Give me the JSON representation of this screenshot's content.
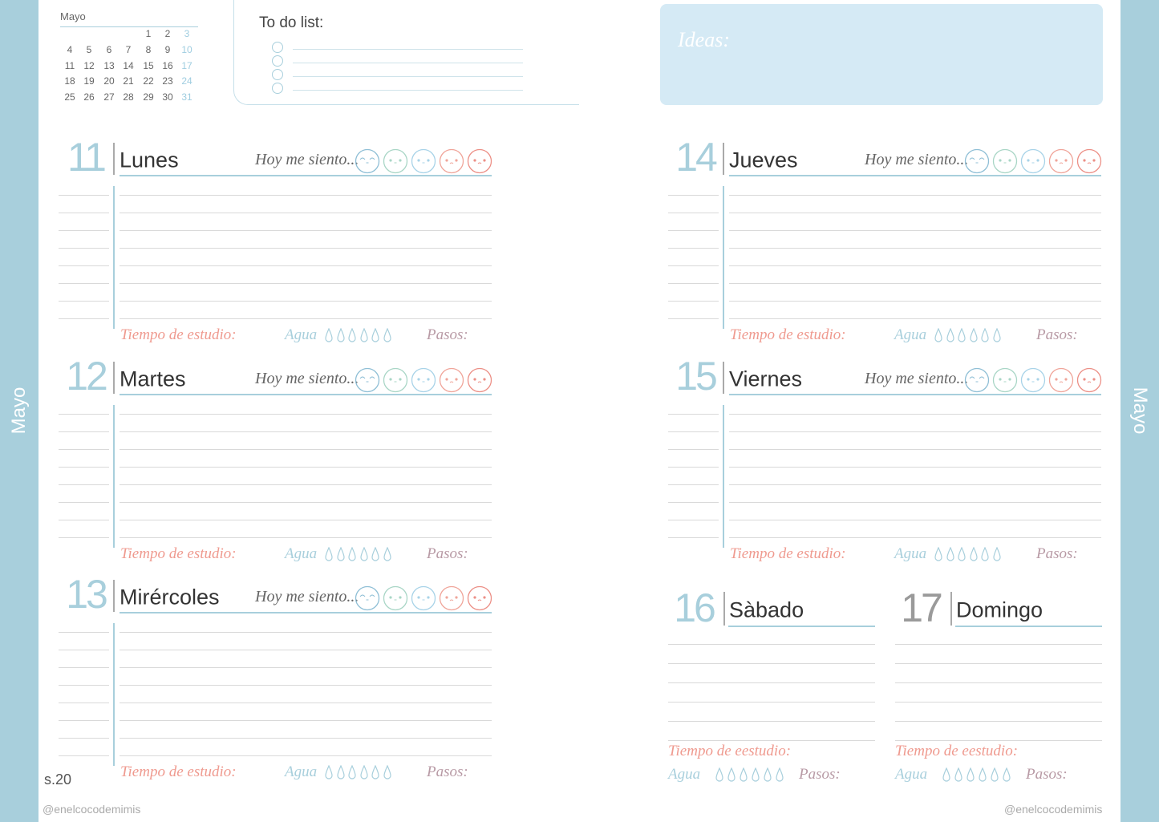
{
  "sidebar": {
    "left_label": "Mayo",
    "right_label": "Mayo"
  },
  "calendar": {
    "month": "Mayo",
    "rows": [
      [
        "",
        "",
        "",
        "",
        "1",
        "2",
        "3"
      ],
      [
        "4",
        "5",
        "6",
        "7",
        "8",
        "9",
        "10"
      ],
      [
        "11",
        "12",
        "13",
        "14",
        "15",
        "16",
        "17"
      ],
      [
        "18",
        "19",
        "20",
        "21",
        "22",
        "23",
        "24"
      ],
      [
        "25",
        "26",
        "27",
        "28",
        "29",
        "30",
        "31"
      ]
    ]
  },
  "todo": {
    "title": "To do list:",
    "items": 4
  },
  "ideas": {
    "title": "Ideas:"
  },
  "labels": {
    "mood": "Hoy me siento...",
    "study": "Tiempo de estudio:",
    "study_weekend": "Tiempo de eestudio:",
    "water": "Agua",
    "steps": "Pasos:"
  },
  "days": [
    {
      "num": "11",
      "name": "Lunes"
    },
    {
      "num": "12",
      "name": "Martes"
    },
    {
      "num": "13",
      "name": "Mirércoles"
    },
    {
      "num": "14",
      "name": "Jueves"
    },
    {
      "num": "15",
      "name": "Viernes"
    },
    {
      "num": "16",
      "name": "Sàbado"
    },
    {
      "num": "17",
      "name": "Domingo"
    }
  ],
  "moods": [
    "happy-face-icon",
    "calm-face-icon",
    "neutral-face-icon",
    "sad-face-icon",
    "angry-face-icon"
  ],
  "water_glasses": 6,
  "week": "s.20",
  "footer": {
    "left": "@enelcocodemimis",
    "right": "@enelcocodemimis"
  },
  "colors": {
    "accent": "#a8cfdc",
    "ideas_bg": "#d5eaf5",
    "study": "#ef9a8f",
    "steps": "#b89aa5",
    "number_gray": "#9a9a9a"
  }
}
